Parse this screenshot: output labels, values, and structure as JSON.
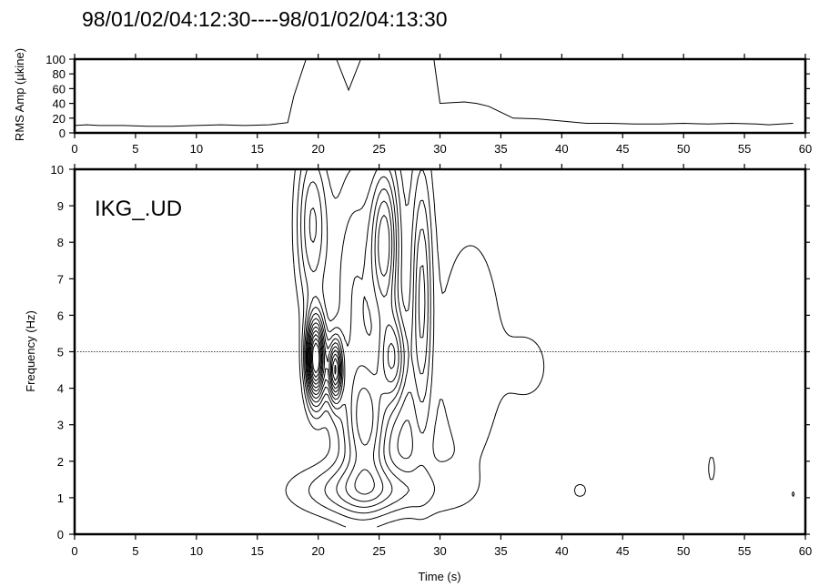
{
  "title": "98/01/02/04:12:30----98/01/02/04:13:30",
  "chart_data": [
    {
      "type": "line",
      "panel": "rms-amplitude",
      "ylabel": "RMS Amp (µkine)",
      "xlabel": "",
      "xlim": [
        0,
        60
      ],
      "ylim": [
        0,
        100
      ],
      "x_ticks": [
        0,
        5,
        10,
        15,
        20,
        25,
        30,
        35,
        40,
        45,
        50,
        55,
        60
      ],
      "y_ticks": [
        0,
        20,
        40,
        60,
        80,
        100
      ],
      "grid": false,
      "series": [
        {
          "x": [
            0,
            1,
            2,
            4,
            6,
            8,
            10,
            12,
            14,
            16,
            17.5,
            18,
            19,
            20,
            20.5,
            21.5,
            22.5,
            23.5,
            25,
            27,
            28.5,
            29.5,
            30,
            31,
            32,
            33,
            34,
            35,
            36,
            38,
            40,
            42,
            44,
            46,
            48,
            50,
            52,
            54,
            56,
            57,
            58,
            59
          ],
          "y": [
            10,
            11,
            10,
            10,
            9,
            9,
            10,
            11,
            10,
            11,
            14,
            50,
            100,
            100,
            100,
            100,
            58,
            100,
            100,
            100,
            100,
            100,
            40,
            41,
            42,
            40,
            36,
            28,
            20,
            19,
            16,
            13,
            13,
            12,
            12,
            13,
            12,
            13,
            12,
            11,
            12,
            13
          ]
        }
      ]
    },
    {
      "type": "contour",
      "panel": "spectrogram",
      "label": "IKG_.UD",
      "xlabel": "Time (s)",
      "ylabel": "Frequency (Hz)",
      "xlim": [
        0,
        60
      ],
      "ylim": [
        0,
        10
      ],
      "x_ticks": [
        0,
        5,
        10,
        15,
        20,
        25,
        30,
        35,
        40,
        45,
        50,
        55,
        60
      ],
      "y_ticks": [
        0,
        1,
        2,
        3,
        4,
        5,
        6,
        7,
        8,
        9,
        10
      ],
      "reference_line_y": 5,
      "grid": false,
      "sources": [
        {
          "t": 19.8,
          "f": 4.8,
          "st": 0.55,
          "sf": 0.8,
          "a": 14
        },
        {
          "t": 21.4,
          "f": 4.5,
          "st": 0.4,
          "sf": 0.6,
          "a": 10
        },
        {
          "t": 19.5,
          "f": 8.5,
          "st": 0.9,
          "sf": 1.6,
          "a": 5
        },
        {
          "t": 25.5,
          "f": 8.0,
          "st": 0.8,
          "sf": 1.5,
          "a": 7
        },
        {
          "t": 26.2,
          "f": 4.8,
          "st": 0.8,
          "sf": 0.9,
          "a": 6
        },
        {
          "t": 24.0,
          "f": 3.0,
          "st": 1.2,
          "sf": 1.2,
          "a": 5
        },
        {
          "t": 28.5,
          "f": 6.5,
          "st": 0.6,
          "sf": 2.5,
          "a": 5
        },
        {
          "t": 23.0,
          "f": 6.5,
          "st": 1.5,
          "sf": 3.0,
          "a": 4
        },
        {
          "t": 24.0,
          "f": 1.2,
          "st": 4.0,
          "sf": 0.5,
          "a": 4
        },
        {
          "t": 32.5,
          "f": 5.0,
          "st": 2.5,
          "sf": 3.0,
          "a": 1.6
        },
        {
          "t": 37.5,
          "f": 4.6,
          "st": 1.4,
          "sf": 0.8,
          "a": 1.2
        },
        {
          "t": 41.5,
          "f": 1.2,
          "st": 0.7,
          "sf": 0.25,
          "a": 1.25
        },
        {
          "t": 52.3,
          "f": 1.8,
          "st": 0.35,
          "sf": 0.45,
          "a": 1.3
        },
        {
          "t": 59.0,
          "f": 1.1,
          "st": 0.25,
          "sf": 0.15,
          "a": 1.15
        }
      ],
      "levels": [
        1,
        2,
        3,
        4,
        5,
        6,
        7,
        8,
        9,
        10,
        11,
        12,
        13
      ]
    }
  ]
}
